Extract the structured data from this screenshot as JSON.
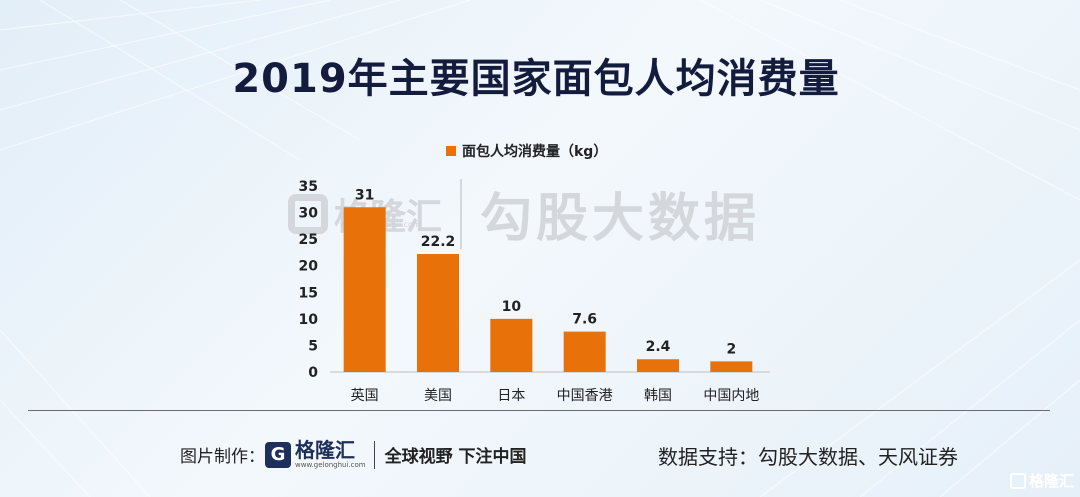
{
  "title": "2019年主要国家面包人均消费量",
  "watermark": {
    "brand": "格隆汇",
    "url": "www.gelonghui.com",
    "text": "勾股大数据"
  },
  "chart_data": {
    "type": "bar",
    "categories": [
      "英国",
      "美国",
      "日本",
      "中国香港",
      "韩国",
      "中国内地"
    ],
    "series": [
      {
        "name": "面包人均消费量（kg）",
        "values": [
          31,
          22.2,
          10,
          7.6,
          2.4,
          2
        ],
        "color": "#e8710a"
      }
    ],
    "data_labels": [
      "31",
      "22.2",
      "10",
      "7.6",
      "2.4",
      "2"
    ],
    "y_ticks": [
      "0",
      "5",
      "10",
      "15",
      "20",
      "25",
      "30",
      "35"
    ],
    "ylim": [
      0,
      35
    ],
    "grid": false,
    "legend_position": "top"
  },
  "footer": {
    "credit_label": "图片制作：",
    "brand": "格隆汇",
    "brand_url": "www.gelonghui.com",
    "slogan": "全球视野 下注中国",
    "source": "数据支持：勾股大数据、天风证券"
  },
  "corner_brand": "格隆汇",
  "colors": {
    "bar": "#e8710a",
    "title": "#141c3e",
    "footer_logo": "#1f2f5c"
  }
}
